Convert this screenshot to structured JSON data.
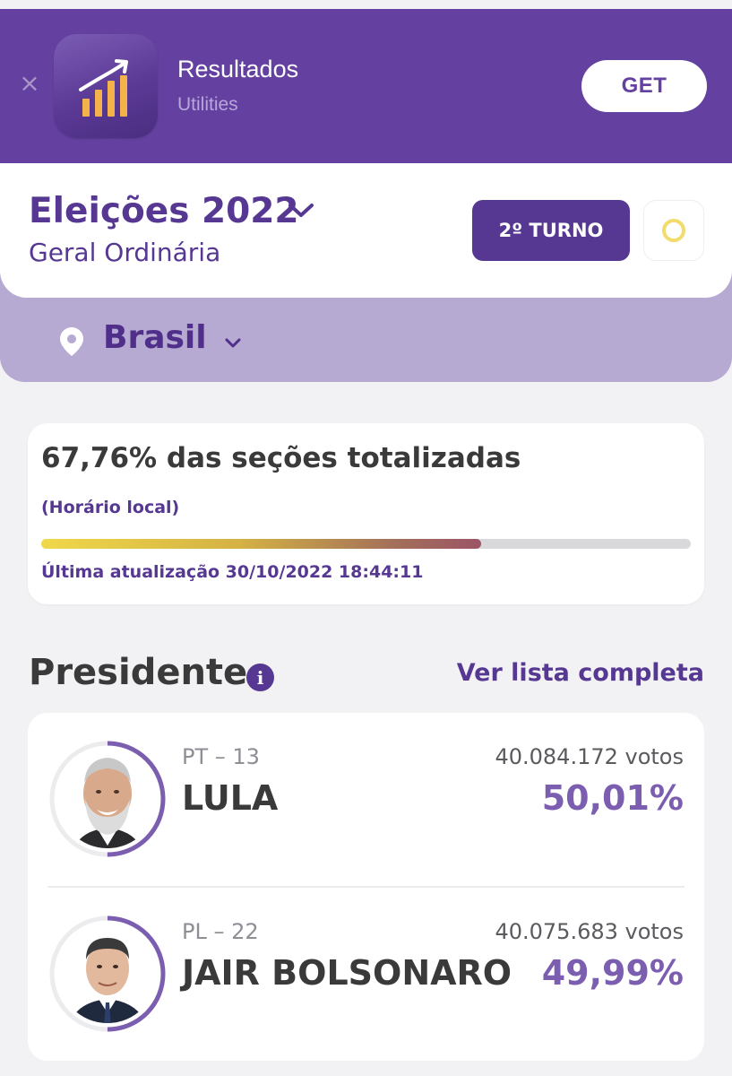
{
  "banner": {
    "close_icon": "close-icon",
    "app_icon": "bar-chart-growth-icon",
    "app_name": "Resultados",
    "app_category": "Utilities",
    "get_label": "GET"
  },
  "header": {
    "title": "Eleições 2022",
    "subtitle": "Geral Ordinária",
    "turno_label": "2º TURNO",
    "status_icon": "ring-icon"
  },
  "location": {
    "icon": "map-pin-icon",
    "label": "Brasil"
  },
  "progress": {
    "title": "67,76% das seções totalizadas",
    "note": "(Horário local)",
    "fraction": 0.6776,
    "last_update": "Última atualização 30/10/2022 18:44:11"
  },
  "section": {
    "title": "Presidente",
    "info_icon": "info-icon",
    "link_label": "Ver lista completa"
  },
  "candidates": [
    {
      "party": "PT – 13",
      "name": "LULA",
      "votes": "40.084.172 votos",
      "percent": "50,01%",
      "share": 0.5001
    },
    {
      "party": "PL – 22",
      "name": "JAIR BOLSONARO",
      "votes": "40.075.683 votos",
      "percent": "49,99%",
      "share": 0.4999
    }
  ],
  "colors": {
    "brand_purple": "#563893",
    "banner_purple": "#6441a0",
    "accent_purple": "#7b5eaf",
    "location_bar": "#b6a9d2",
    "status_yellow": "#f2dc6e"
  }
}
